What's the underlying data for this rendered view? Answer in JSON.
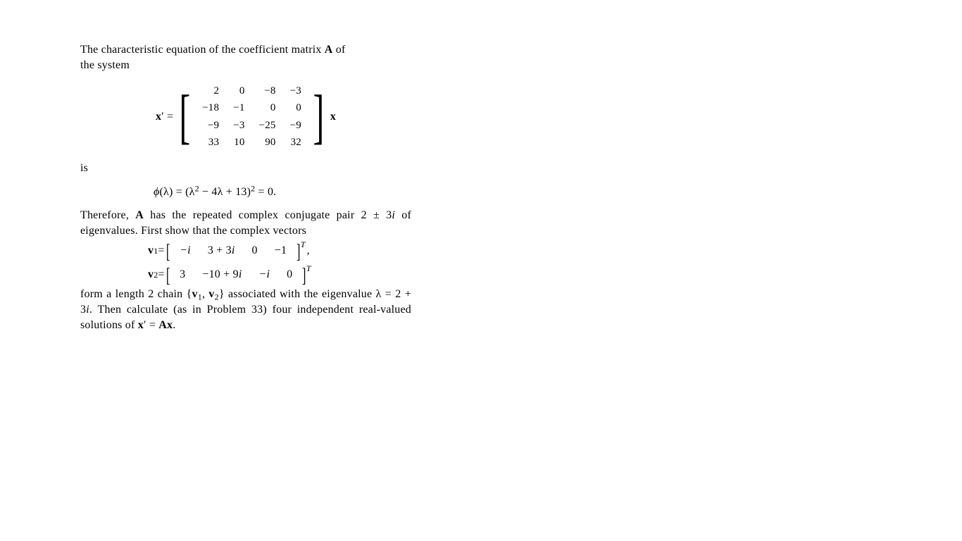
{
  "intro_line1": "The characteristic equation of the coefficient matrix ",
  "intro_A": "A",
  "intro_line1b": " of",
  "intro_line2": "the system",
  "lhs_x": "x",
  "lhs_prime": "′",
  "lhs_eq": " = ",
  "matrix": [
    [
      "2",
      "0",
      "−8",
      "−3"
    ],
    [
      "−18",
      "−1",
      "0",
      "0"
    ],
    [
      "−9",
      "−3",
      "−25",
      "−9"
    ],
    [
      "33",
      "10",
      "90",
      "32"
    ]
  ],
  "rhs_x": "x",
  "is_text": "is",
  "char_eq_phi": "ϕ",
  "char_eq_rest1": "(λ) = (λ",
  "char_eq_sup2": "2",
  "char_eq_rest2": " − 4λ + 13)",
  "char_eq_sup2b": "2",
  "char_eq_rest3": " = 0.",
  "para2_a": "Therefore, ",
  "para2_A": "A",
  "para2_b": " has the repeated complex conjugate pair 2 ± 3",
  "para2_i": "i",
  "para2_c": " of eigenvalues.  First show that the complex vec­tors",
  "v1_lbl_v": "v",
  "v1_lbl_1": "1",
  "v1_eq": " = ",
  "v1": [
    "−i",
    "3 + 3i",
    "0",
    "−1"
  ],
  "v1_comma": " ,",
  "v2_lbl_v": "v",
  "v2_lbl_2": "2",
  "v2_eq": " = ",
  "v2": [
    "3",
    "−10 + 9i",
    "−i",
    "0"
  ],
  "T": "T",
  "para3_a": "form a length 2 chain {",
  "para3_v1v": "v",
  "para3_v1_1": "1",
  "para3_sep": ", ",
  "para3_v2v": "v",
  "para3_v2_2": "2",
  "para3_b": "} associated with the eigen­value λ = 2 + 3",
  "para3_i": "i",
  "para3_c": ". Then calculate (as in Problem 33) four independent real-valued solutions of ",
  "para3_x": "x",
  "para3_prime": "′",
  "para3_eq": " = ",
  "para3_A": "A",
  "para3_x2": "x",
  "para3_dot": "."
}
